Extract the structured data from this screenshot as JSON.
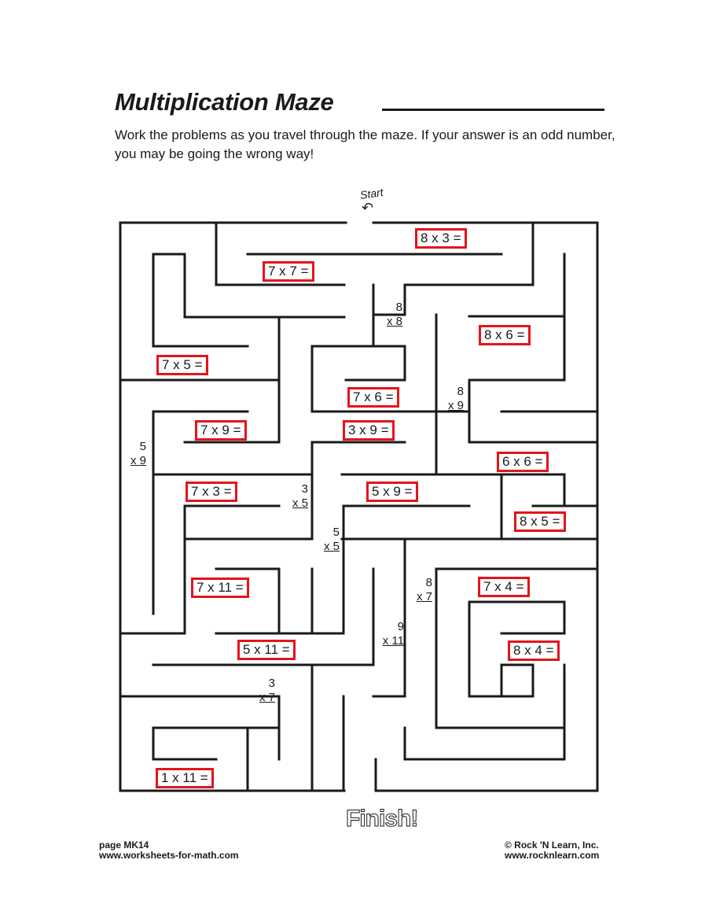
{
  "header": {
    "title": "Multiplication Maze",
    "instructions": "Work the problems as you travel through the maze. If your answer is an odd number, you may be going the wrong way!"
  },
  "maze": {
    "start_label": "Start",
    "finish_label": "Finish!",
    "boxed_problems": [
      "8 x 3 =",
      "7 x 7 =",
      "8 x 6 =",
      "7 x 5 =",
      "7 x 6 =",
      "7 x 9 =",
      "3 x 9 =",
      "6 x 6 =",
      "7 x 3 =",
      "5 x 9 =",
      "8 x 5 =",
      "7 x 11 =",
      "7 x 4 =",
      "5 x 11 =",
      "8 x 4 =",
      "1 x 11 ="
    ],
    "vertical_problems": [
      {
        "top": "8",
        "bottom": "x 8"
      },
      {
        "top": "8",
        "bottom": "x 9"
      },
      {
        "top": "5",
        "bottom": "x 9"
      },
      {
        "top": "3",
        "bottom": "x 5"
      },
      {
        "top": "5",
        "bottom": "x 5"
      },
      {
        "top": "8",
        "bottom": "x 7"
      },
      {
        "top": "9",
        "bottom": "x 11"
      },
      {
        "top": "3",
        "bottom": "x 7"
      }
    ]
  },
  "footer": {
    "page": "page MK14",
    "left_url": "www.worksheets-for-math.com",
    "copyright": "© Rock 'N Learn, Inc.",
    "right_url": "www.rocknlearn.com"
  },
  "colors": {
    "highlight_box": "#e4141b",
    "ink": "#1a1a1a"
  }
}
